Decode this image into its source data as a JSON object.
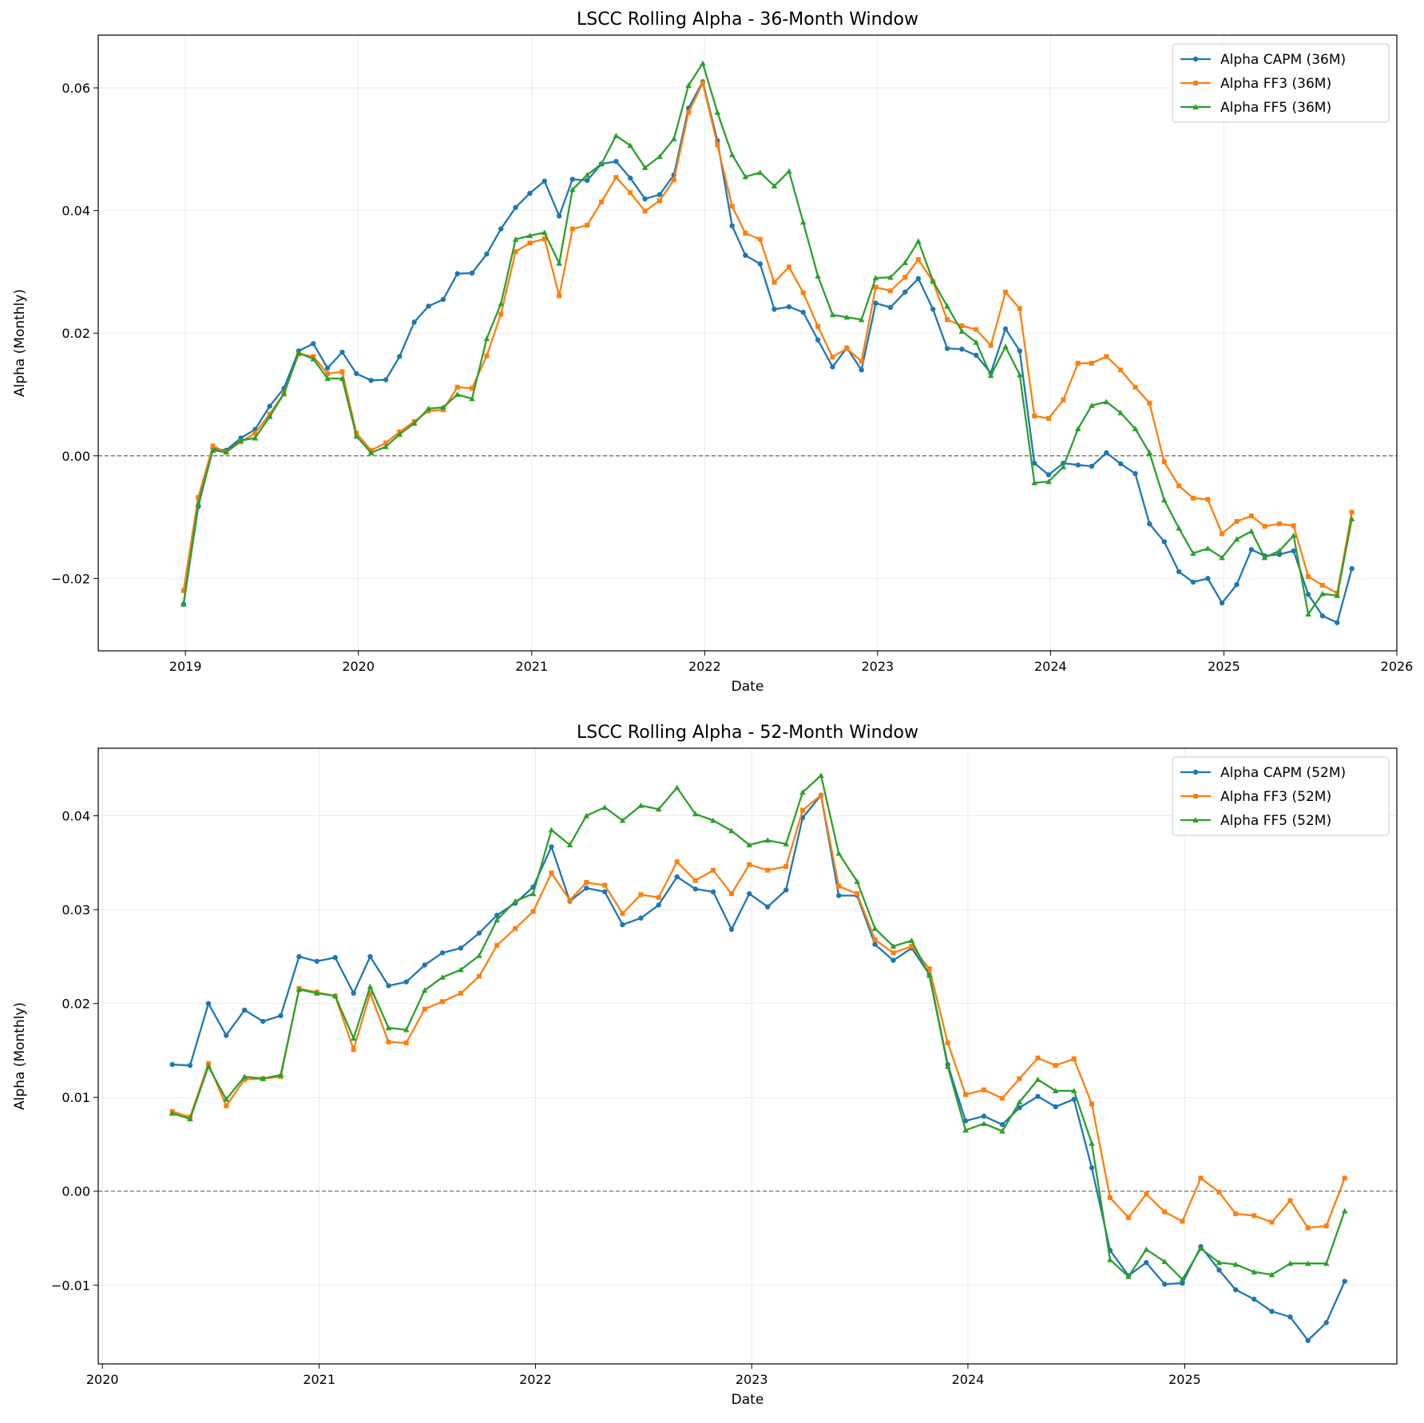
{
  "chart_data": [
    {
      "type": "line",
      "title": "LSCC Rolling Alpha - 36-Month Window",
      "xlabel": "Date",
      "ylabel": "Alpha (Monthly)",
      "x_start": "2018-12",
      "x_ticks": [
        "2019",
        "2020",
        "2021",
        "2022",
        "2023",
        "2024",
        "2025",
        "2026"
      ],
      "y_ticks": [
        "−0.02",
        "0.00",
        "0.02",
        "0.04",
        "0.06"
      ],
      "xlim": [
        "2018-07-01",
        "2026-01-01"
      ],
      "ylim": [
        -0.0318,
        0.0686
      ],
      "grid": true,
      "zero_line": true,
      "legend_position": "upper right",
      "series": [
        {
          "name": "Alpha CAPM (36M)",
          "color": "#1f77b4",
          "marker": "circle",
          "values": [
            -0.0242,
            -0.0083,
            0.0012,
            0.0009,
            0.0029,
            0.0043,
            0.0081,
            0.011,
            0.0171,
            0.0183,
            0.0143,
            0.0169,
            0.0134,
            0.0123,
            0.0124,
            0.0162,
            0.0218,
            0.0244,
            0.0255,
            0.0297,
            0.0298,
            0.0329,
            0.037,
            0.0405,
            0.0428,
            0.0448,
            0.0391,
            0.0451,
            0.0449,
            0.0476,
            0.048,
            0.0453,
            0.0419,
            0.0426,
            0.0458,
            0.0567,
            0.061,
            0.0514,
            0.0375,
            0.0327,
            0.0313,
            0.0239,
            0.0243,
            0.0234,
            0.0189,
            0.0145,
            0.0176,
            0.014,
            0.0249,
            0.0242,
            0.0267,
            0.0289,
            0.0239,
            0.0175,
            0.0174,
            0.0164,
            0.0135,
            0.0207,
            0.0171,
            -0.0012,
            -0.0031,
            -0.0012,
            -0.0015,
            -0.0017,
            0.0005,
            -0.0013,
            -0.0029,
            -0.0111,
            -0.014,
            -0.0189,
            -0.0206,
            -0.02,
            -0.024,
            -0.021,
            -0.0153,
            -0.0163,
            -0.0161,
            -0.0155,
            -0.0226,
            -0.0261,
            -0.0272,
            -0.0184
          ]
        },
        {
          "name": "Alpha FF3 (36M)",
          "color": "#ff7f0e",
          "marker": "square",
          "values": [
            -0.022,
            -0.0068,
            0.0016,
            0.0006,
            0.0023,
            0.0037,
            0.0068,
            0.0102,
            0.0166,
            0.0162,
            0.0134,
            0.0137,
            0.0037,
            0.0009,
            0.0021,
            0.0039,
            0.0056,
            0.0073,
            0.0075,
            0.0112,
            0.011,
            0.0163,
            0.0231,
            0.0333,
            0.0347,
            0.0354,
            0.0261,
            0.037,
            0.0376,
            0.0414,
            0.0454,
            0.0429,
            0.0399,
            0.0416,
            0.045,
            0.056,
            0.0608,
            0.0507,
            0.0407,
            0.0363,
            0.0353,
            0.0283,
            0.0308,
            0.0266,
            0.0211,
            0.0161,
            0.0175,
            0.0154,
            0.0275,
            0.0269,
            0.0291,
            0.032,
            0.0284,
            0.0222,
            0.0212,
            0.0206,
            0.018,
            0.0267,
            0.024,
            0.0065,
            0.0061,
            0.0091,
            0.0151,
            0.0151,
            0.0162,
            0.014,
            0.0112,
            0.0086,
            -0.001,
            -0.0049,
            -0.0069,
            -0.0071,
            -0.0127,
            -0.0107,
            -0.0098,
            -0.0115,
            -0.0111,
            -0.0114,
            -0.0197,
            -0.0211,
            -0.0224,
            -0.0092
          ]
        },
        {
          "name": "Alpha FF5 (36M)",
          "color": "#2ca02c",
          "marker": "triangle",
          "values": [
            -0.0242,
            -0.0078,
            0.0009,
            0.0006,
            0.0025,
            0.0029,
            0.0064,
            0.0101,
            0.0168,
            0.0158,
            0.0126,
            0.0126,
            0.0032,
            0.0005,
            0.0015,
            0.0035,
            0.0053,
            0.0077,
            0.0079,
            0.01,
            0.0093,
            0.0191,
            0.0248,
            0.0353,
            0.0359,
            0.0364,
            0.0314,
            0.0434,
            0.0458,
            0.0476,
            0.0522,
            0.0506,
            0.047,
            0.0488,
            0.0517,
            0.0604,
            0.064,
            0.056,
            0.0491,
            0.0455,
            0.0462,
            0.044,
            0.0464,
            0.0381,
            0.0293,
            0.023,
            0.0226,
            0.0222,
            0.029,
            0.0291,
            0.0315,
            0.035,
            0.0285,
            0.0244,
            0.0203,
            0.0185,
            0.0131,
            0.0178,
            0.0132,
            -0.0044,
            -0.0042,
            -0.0018,
            0.0044,
            0.0082,
            0.0088,
            0.007,
            0.0044,
            0.0005,
            -0.0072,
            -0.0118,
            -0.0159,
            -0.0151,
            -0.0166,
            -0.0136,
            -0.0123,
            -0.0166,
            -0.0155,
            -0.013,
            -0.0258,
            -0.0225,
            -0.0228,
            -0.0103
          ]
        }
      ]
    },
    {
      "type": "line",
      "title": "LSCC Rolling Alpha - 52-Month Window",
      "xlabel": "Date",
      "ylabel": "Alpha (Monthly)",
      "x_start": "2020-04",
      "x_ticks": [
        "2020",
        "2021",
        "2022",
        "2023",
        "2024",
        "2025"
      ],
      "y_ticks": [
        "−0.01",
        "0.00",
        "0.01",
        "0.02",
        "0.03",
        "0.04"
      ],
      "xlim": [
        "2019-12-25",
        "2025-12-25"
      ],
      "ylim": [
        -0.0184,
        0.0472
      ],
      "grid": true,
      "zero_line": true,
      "legend_position": "upper right",
      "series": [
        {
          "name": "Alpha CAPM (52M)",
          "color": "#1f77b4",
          "marker": "circle",
          "values": [
            0.0135,
            0.0134,
            0.02,
            0.0166,
            0.0193,
            0.0181,
            0.0187,
            0.025,
            0.0245,
            0.0249,
            0.0211,
            0.025,
            0.0219,
            0.0223,
            0.0241,
            0.0254,
            0.0259,
            0.0275,
            0.0294,
            0.0307,
            0.0324,
            0.0367,
            0.0309,
            0.0323,
            0.0319,
            0.0284,
            0.0291,
            0.0305,
            0.0335,
            0.0322,
            0.0319,
            0.0279,
            0.0317,
            0.0303,
            0.0321,
            0.0398,
            0.0422,
            0.0315,
            0.0315,
            0.0263,
            0.0246,
            0.0259,
            0.0231,
            0.0135,
            0.0075,
            0.008,
            0.0071,
            0.0089,
            0.0101,
            0.009,
            0.0098,
            0.0025,
            -0.0063,
            -0.009,
            -0.0076,
            -0.0099,
            -0.0098,
            -0.0059,
            -0.0084,
            -0.0105,
            -0.0115,
            -0.0128,
            -0.0134,
            -0.0159,
            -0.014,
            -0.0096
          ]
        },
        {
          "name": "Alpha FF3 (52M)",
          "color": "#ff7f0e",
          "marker": "square",
          "values": [
            0.0085,
            0.0079,
            0.0136,
            0.0091,
            0.0119,
            0.012,
            0.0122,
            0.0216,
            0.0212,
            0.0208,
            0.0151,
            0.0211,
            0.0159,
            0.0158,
            0.0194,
            0.0202,
            0.0211,
            0.0229,
            0.0262,
            0.028,
            0.0298,
            0.0339,
            0.031,
            0.0329,
            0.0326,
            0.0296,
            0.0316,
            0.0313,
            0.0351,
            0.0331,
            0.0342,
            0.0317,
            0.0348,
            0.0342,
            0.0346,
            0.0406,
            0.0422,
            0.0325,
            0.0317,
            0.0268,
            0.0254,
            0.0261,
            0.0237,
            0.0158,
            0.0103,
            0.0108,
            0.0099,
            0.012,
            0.0142,
            0.0134,
            0.0141,
            0.0093,
            -0.0007,
            -0.0028,
            -0.0003,
            -0.0022,
            -0.0032,
            0.0014,
            -0.0001,
            -0.0024,
            -0.0026,
            -0.0033,
            -0.001,
            -0.0039,
            -0.0037,
            0.0014
          ]
        },
        {
          "name": "Alpha FF5 (52M)",
          "color": "#2ca02c",
          "marker": "triangle",
          "values": [
            0.0083,
            0.0077,
            0.0133,
            0.0098,
            0.0122,
            0.012,
            0.0124,
            0.0215,
            0.0211,
            0.0208,
            0.0163,
            0.0218,
            0.0174,
            0.0172,
            0.0214,
            0.0228,
            0.0236,
            0.0251,
            0.0289,
            0.0309,
            0.0317,
            0.0385,
            0.0369,
            0.04,
            0.0409,
            0.0395,
            0.0411,
            0.0407,
            0.043,
            0.0402,
            0.0395,
            0.0384,
            0.0369,
            0.0374,
            0.037,
            0.0425,
            0.0443,
            0.036,
            0.033,
            0.028,
            0.0261,
            0.0267,
            0.023,
            0.0133,
            0.0065,
            0.0072,
            0.0064,
            0.0095,
            0.0119,
            0.0107,
            0.0107,
            0.0051,
            -0.0073,
            -0.0091,
            -0.0062,
            -0.0075,
            -0.0094,
            -0.0061,
            -0.0076,
            -0.0078,
            -0.0086,
            -0.0089,
            -0.0077,
            -0.0077,
            -0.0077,
            -0.0021
          ]
        }
      ]
    }
  ]
}
